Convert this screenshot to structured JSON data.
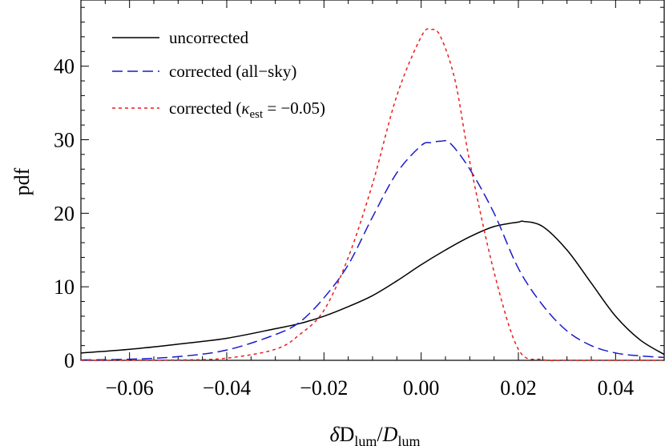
{
  "chart_data": {
    "type": "line",
    "title": "",
    "xlabel": {
      "prefix": "δ",
      "base1": "D",
      "sub1": "lum",
      "slash": "/",
      "base2": "D",
      "sub2": "lum"
    },
    "ylabel": "pdf",
    "xlim": [
      -0.07,
      0.05
    ],
    "ylim": [
      0,
      49
    ],
    "xticks": [
      -0.06,
      -0.04,
      -0.02,
      0.0,
      0.02,
      0.04
    ],
    "xtick_labels": [
      "−0.06",
      "−0.04",
      "−0.02",
      "0.00",
      "0.02",
      "0.04"
    ],
    "yticks": [
      0,
      10,
      20,
      30,
      40
    ],
    "ytick_labels": [
      "0",
      "10",
      "20",
      "30",
      "40"
    ],
    "legend": {
      "placement": "top-left",
      "entries": [
        {
          "label": "uncorrected"
        },
        {
          "label": "corrected (all−sky)"
        },
        {
          "label_prefix": "corrected (",
          "label_symbol": "κ",
          "label_sub": "est",
          "label_suffix": " = −0.05)"
        }
      ]
    },
    "series": [
      {
        "name": "uncorrected",
        "color": "#000000",
        "style": "solid",
        "x": [
          -0.07,
          -0.06,
          -0.05,
          -0.04,
          -0.03,
          -0.025,
          -0.02,
          -0.015,
          -0.01,
          -0.005,
          0.0,
          0.005,
          0.01,
          0.015,
          0.02,
          0.021,
          0.025,
          0.03,
          0.035,
          0.04,
          0.045,
          0.05
        ],
        "y": [
          1.0,
          1.5,
          2.2,
          3.0,
          4.3,
          5.0,
          6.0,
          7.3,
          8.8,
          10.8,
          13.0,
          15.0,
          16.8,
          18.2,
          18.8,
          18.9,
          18.2,
          15.0,
          10.5,
          6.0,
          2.8,
          0.8
        ]
      },
      {
        "name": "corrected (all−sky)",
        "color": "#1a1acc",
        "style": "long-dash",
        "x": [
          -0.07,
          -0.06,
          -0.05,
          -0.04,
          -0.03,
          -0.025,
          -0.02,
          -0.015,
          -0.01,
          -0.005,
          0.0,
          0.002,
          0.004,
          0.006,
          0.01,
          0.015,
          0.02,
          0.025,
          0.03,
          0.035,
          0.04,
          0.045,
          0.05
        ],
        "y": [
          0.05,
          0.15,
          0.5,
          1.4,
          3.5,
          5.2,
          8.5,
          13.0,
          19.5,
          25.5,
          29.2,
          29.6,
          29.8,
          29.5,
          26.0,
          20.0,
          12.5,
          7.5,
          4.0,
          2.0,
          1.0,
          0.6,
          0.4
        ]
      },
      {
        "name": "corrected (κ_est = −0.05)",
        "color": "#e81e1e",
        "style": "short-dash",
        "x": [
          -0.07,
          -0.05,
          -0.04,
          -0.03,
          -0.025,
          -0.02,
          -0.015,
          -0.01,
          -0.005,
          0.0,
          0.002,
          0.004,
          0.007,
          0.01,
          0.015,
          0.02,
          0.025,
          0.03,
          0.04,
          0.05
        ],
        "y": [
          0.0,
          0.05,
          0.3,
          1.5,
          3.5,
          6.8,
          14.0,
          24.0,
          36.0,
          44.0,
          45.0,
          44.0,
          38.0,
          27.0,
          12.0,
          1.5,
          0.1,
          0.0,
          0.0,
          0.0
        ]
      }
    ]
  }
}
